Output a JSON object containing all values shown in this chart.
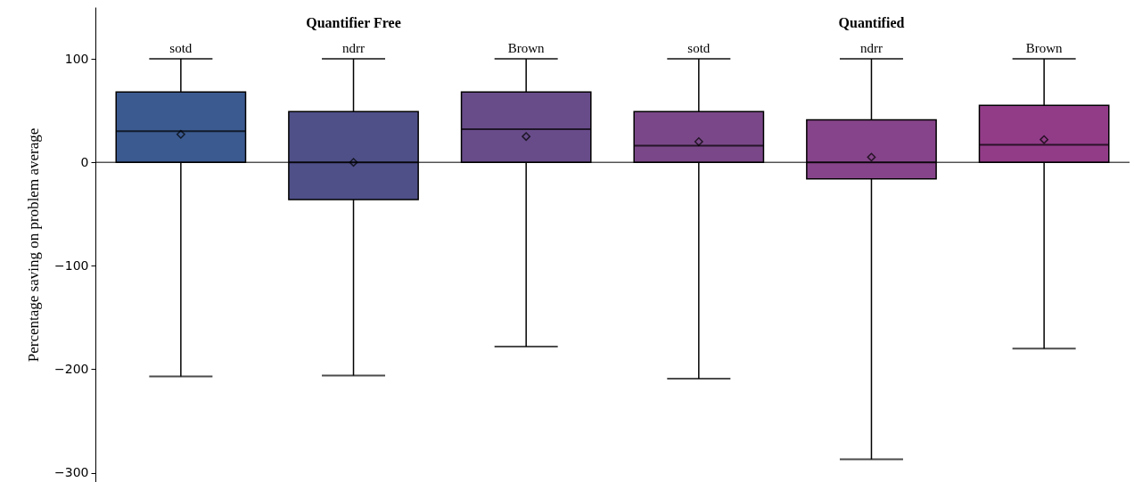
{
  "chart_data": {
    "type": "box",
    "ylabel": "Percentage saving on problem average",
    "categories": [
      "sotd",
      "ndrr",
      "Brown",
      "sotd",
      "ndrr",
      "Brown"
    ],
    "colors": [
      "#3b5a90",
      "#4f5088",
      "#684c8a",
      "#7a4888",
      "#86448a",
      "#923c88"
    ],
    "boxes": [
      {
        "low": -207,
        "q1": 0,
        "median": 30,
        "q3": 68,
        "high": 100,
        "mean": 27
      },
      {
        "low": -206,
        "q1": -36,
        "median": 0,
        "q3": 49,
        "high": 100,
        "mean": 0
      },
      {
        "low": -178,
        "q1": 0,
        "median": 32,
        "q3": 68,
        "high": 100,
        "mean": 25
      },
      {
        "low": -209,
        "q1": 0,
        "median": 16,
        "q3": 49,
        "high": 100,
        "mean": 20
      },
      {
        "low": -287,
        "q1": -16,
        "median": 0,
        "q3": 41,
        "high": 100,
        "mean": 5
      },
      {
        "low": -180,
        "q1": 0,
        "median": 17,
        "q3": 55,
        "high": 100,
        "mean": 22
      }
    ],
    "marker": "diamond",
    "ylim": [
      -309,
      150
    ],
    "yticks": [
      -300,
      -200,
      -100,
      0,
      100
    ],
    "ref_lines": [
      {
        "axis": "y",
        "value": 0,
        "label": null
      }
    ],
    "annotations": [
      "Quantifier Free",
      "Quantified"
    ],
    "grid": false
  }
}
